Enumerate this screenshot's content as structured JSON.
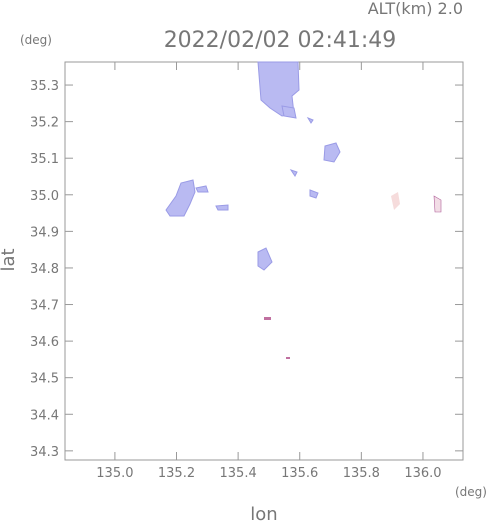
{
  "chart_data": {
    "type": "scatter",
    "title": "2022/02/02 02:41:49",
    "subtitle": "ALT(km) 2.0",
    "x_label": "lon",
    "y_label": "lat",
    "x_unit": "(deg)",
    "y_unit": "(deg)",
    "xlim": [
      134.838,
      136.13
    ],
    "ylim": [
      34.275,
      35.363
    ],
    "xticks": [
      {
        "value": 135,
        "label": "135.0"
      },
      135.2,
      135.4,
      135.6,
      135.8,
      {
        "value": 136,
        "label": "136.0"
      }
    ],
    "yticks": [
      34.3,
      34.4,
      34.5,
      34.6,
      34.7,
      34.8,
      34.9,
      {
        "value": 35,
        "label": "35.0"
      },
      35.1,
      35.2,
      35.3
    ],
    "grid": false
  }
}
